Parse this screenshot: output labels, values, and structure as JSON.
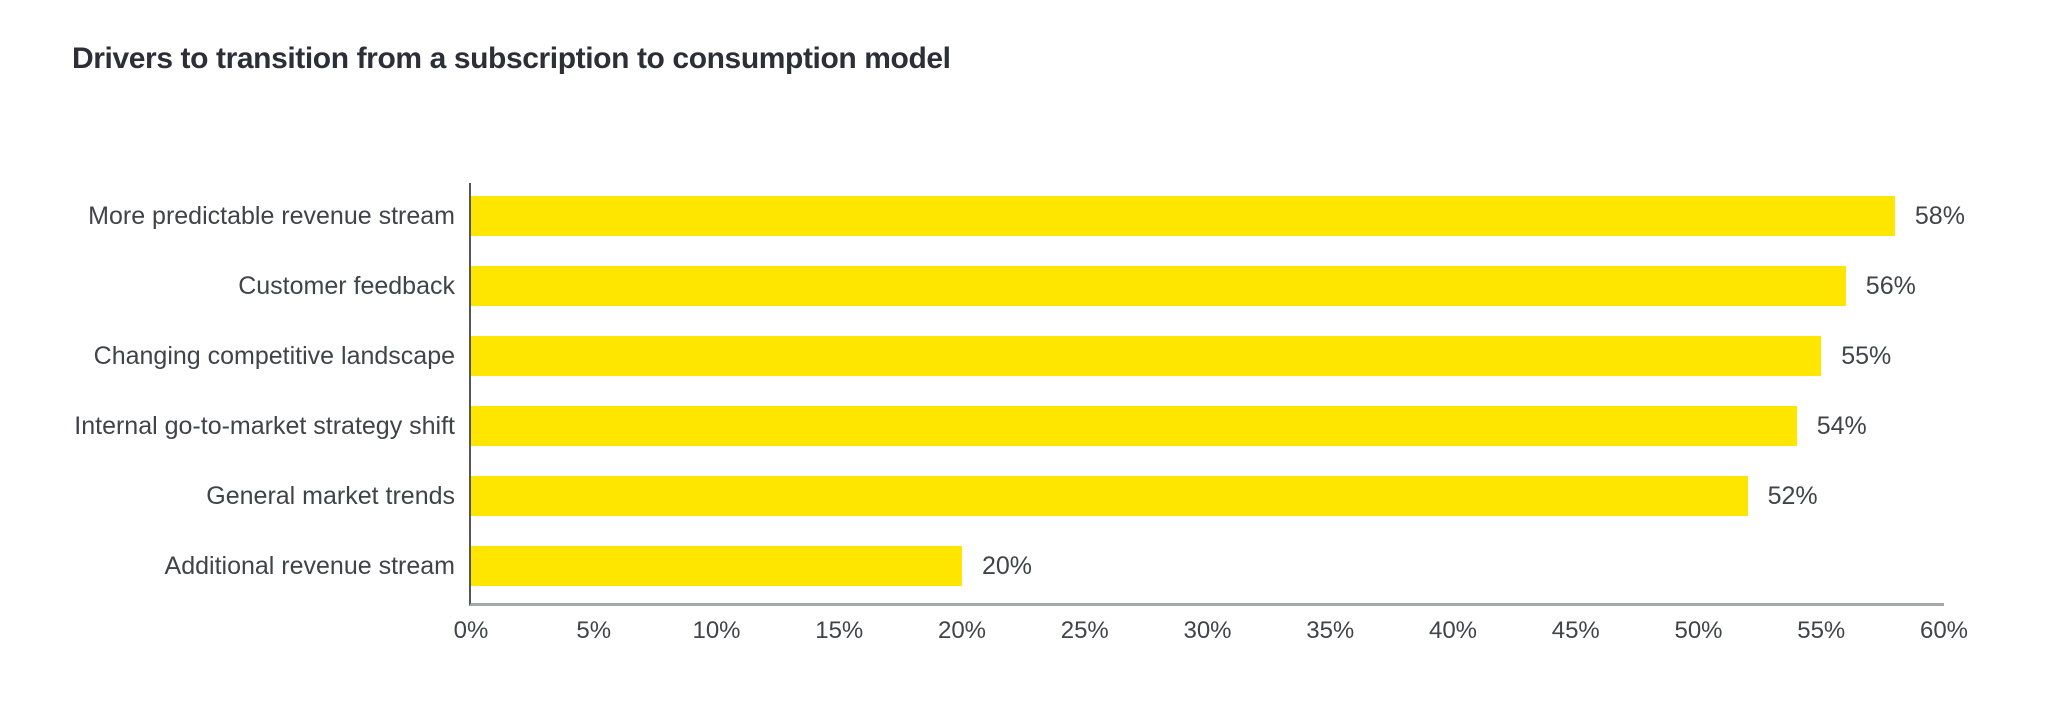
{
  "colors": {
    "background": "#ffffff",
    "bar": "#ffe600",
    "title": "#2e2e38",
    "label": "#40434a",
    "y_axis_line": "#54565a",
    "x_baseline": "#a7a8aa"
  },
  "chart_data": {
    "type": "bar",
    "orientation": "horizontal",
    "title": "Drivers to transition from a subscription to consumption model",
    "categories": [
      "More predictable revenue stream",
      "Customer feedback",
      "Changing competitive landscape",
      "Internal go-to-market strategy shift",
      "General market trends",
      "Additional revenue stream"
    ],
    "values": [
      58,
      56,
      55,
      54,
      52,
      20
    ],
    "value_labels": [
      "58%",
      "56%",
      "55%",
      "54%",
      "52%",
      "20%"
    ],
    "xlabel": "",
    "ylabel": "",
    "xlim": [
      0,
      60
    ],
    "x_ticks": [
      "0%",
      "5%",
      "10%",
      "15%",
      "20%",
      "25%",
      "30%",
      "35%",
      "40%",
      "45%",
      "50%",
      "55%",
      "60%"
    ],
    "x_tick_values": [
      0,
      5,
      10,
      15,
      20,
      25,
      30,
      35,
      40,
      45,
      50,
      55,
      60
    ],
    "grid": false,
    "legend": false,
    "bar_color": "#ffe600"
  }
}
